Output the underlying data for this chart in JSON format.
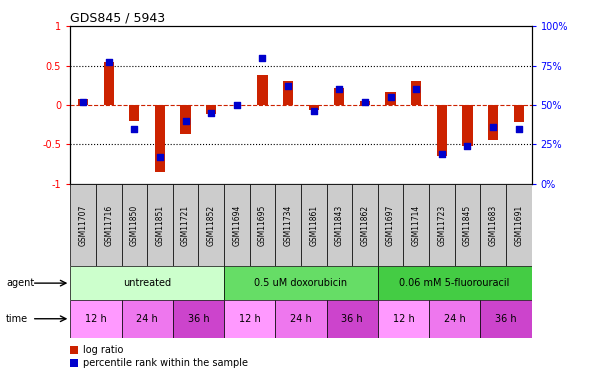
{
  "title": "GDS845 / 5943",
  "samples": [
    "GSM11707",
    "GSM11716",
    "GSM11850",
    "GSM11851",
    "GSM11721",
    "GSM11852",
    "GSM11694",
    "GSM11695",
    "GSM11734",
    "GSM11861",
    "GSM11843",
    "GSM11862",
    "GSM11697",
    "GSM11714",
    "GSM11723",
    "GSM11845",
    "GSM11683",
    "GSM11691"
  ],
  "log_ratio": [
    0.07,
    0.55,
    -0.2,
    -0.85,
    -0.37,
    -0.12,
    0.0,
    0.38,
    0.3,
    -0.06,
    0.22,
    0.05,
    0.17,
    0.3,
    -0.65,
    -0.52,
    -0.45,
    -0.22
  ],
  "percentile": [
    52,
    77,
    35,
    17,
    40,
    45,
    50,
    80,
    62,
    46,
    60,
    52,
    55,
    60,
    19,
    24,
    36,
    35
  ],
  "agents": [
    {
      "label": "untreated",
      "color": "#ccffcc",
      "start": 0,
      "end": 6
    },
    {
      "label": "0.5 uM doxorubicin",
      "color": "#66dd66",
      "start": 6,
      "end": 12
    },
    {
      "label": "0.06 mM 5-fluorouracil",
      "color": "#44cc44",
      "start": 12,
      "end": 18
    }
  ],
  "times": [
    {
      "label": "12 h",
      "color": "#ff99ff",
      "start": 0,
      "end": 2
    },
    {
      "label": "24 h",
      "color": "#ee77ee",
      "start": 2,
      "end": 4
    },
    {
      "label": "36 h",
      "color": "#cc44cc",
      "start": 4,
      "end": 6
    },
    {
      "label": "12 h",
      "color": "#ff99ff",
      "start": 6,
      "end": 8
    },
    {
      "label": "24 h",
      "color": "#ee77ee",
      "start": 8,
      "end": 10
    },
    {
      "label": "36 h",
      "color": "#cc44cc",
      "start": 10,
      "end": 12
    },
    {
      "label": "12 h",
      "color": "#ff99ff",
      "start": 12,
      "end": 14
    },
    {
      "label": "24 h",
      "color": "#ee77ee",
      "start": 14,
      "end": 16
    },
    {
      "label": "36 h",
      "color": "#cc44cc",
      "start": 16,
      "end": 18
    }
  ],
  "bar_color": "#cc2200",
  "dot_color": "#0000cc",
  "ylim_left": [
    -1.0,
    1.0
  ],
  "ylim_right": [
    0,
    100
  ],
  "yticks_left": [
    -1,
    -0.5,
    0,
    0.5,
    1
  ],
  "ytick_labels_left": [
    "-1",
    "-0.5",
    "0",
    "0.5",
    "1"
  ],
  "yticks_right": [
    0,
    25,
    50,
    75,
    100
  ],
  "ytick_labels_right": [
    "0%",
    "25%",
    "50%",
    "75%",
    "100%"
  ],
  "sample_box_color": "#cccccc",
  "fig_bg": "#ffffff"
}
